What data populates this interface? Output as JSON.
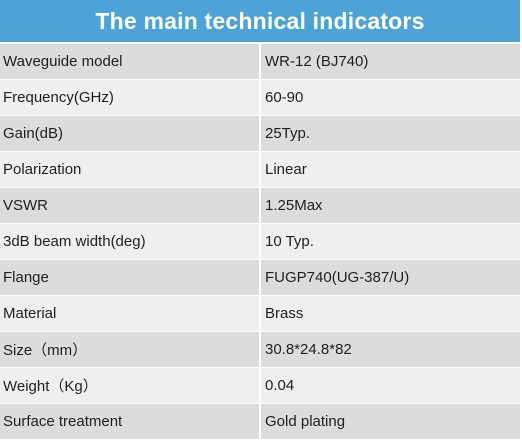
{
  "table": {
    "title": "The main technical indicators",
    "rows": [
      {
        "label": "Waveguide model",
        "value": "WR-12 (BJ740)"
      },
      {
        "label": "Frequency(GHz)",
        "value": "60-90"
      },
      {
        "label": "Gain(dB)",
        "value": "25Typ."
      },
      {
        "label": "Polarization",
        "value": "Linear"
      },
      {
        "label": "VSWR",
        "value": "1.25Max"
      },
      {
        "label": "3dB beam width(deg)",
        "value": "10 Typ."
      },
      {
        "label": "Flange",
        "value": "FUGP740(UG-387/U)"
      },
      {
        "label": "Material",
        "value": "Brass"
      },
      {
        "label": "Size（mm）",
        "value": "30.8*24.8*82"
      },
      {
        "label": "Weight（Kg）",
        "value": "0.04"
      },
      {
        "label": "Surface treatment",
        "value": "Gold plating"
      }
    ]
  },
  "colors": {
    "header_background": "#4da3d6",
    "header_text": "#ffffff",
    "row_odd": "#dcdcdc",
    "row_even": "#efefef"
  }
}
